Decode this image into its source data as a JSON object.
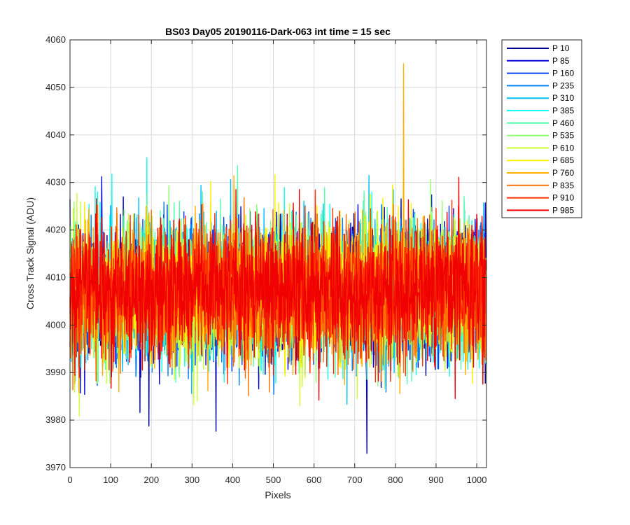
{
  "chart_data": {
    "type": "line",
    "title": "BS03 Day05 20190116-Dark-063 int time = 15 sec",
    "xlabel": "Pixels",
    "ylabel": "Cross Track Signal (ADU)",
    "xlim": [
      0,
      1024
    ],
    "ylim": [
      3970,
      4060
    ],
    "xticks": [
      0,
      100,
      200,
      300,
      400,
      500,
      600,
      700,
      800,
      900,
      1000
    ],
    "yticks": [
      3970,
      3980,
      3990,
      4000,
      4010,
      4020,
      4030,
      4040,
      4050,
      4060
    ],
    "grid": true,
    "legend_position": "outside-top-right",
    "n_points": 1024,
    "signal": {
      "mean": 4007,
      "noise_std": 7,
      "min": 3973,
      "max": 4055,
      "max_pixel": 820,
      "max_series": "P 760",
      "min_pixel": 730,
      "min_series": "P 85"
    },
    "series": [
      {
        "name": "P 10",
        "color": "#00008F"
      },
      {
        "name": "P 85",
        "color": "#0000D6"
      },
      {
        "name": "P 160",
        "color": "#0040FF"
      },
      {
        "name": "P 235",
        "color": "#0080FF"
      },
      {
        "name": "P 310",
        "color": "#00BFFF"
      },
      {
        "name": "P 385",
        "color": "#10FFEF"
      },
      {
        "name": "P 460",
        "color": "#50FFAF"
      },
      {
        "name": "P 535",
        "color": "#8FFF70"
      },
      {
        "name": "P 610",
        "color": "#CFFF30"
      },
      {
        "name": "P 685",
        "color": "#FFEF00"
      },
      {
        "name": "P 760",
        "color": "#FFB000"
      },
      {
        "name": "P 835",
        "color": "#FF7000"
      },
      {
        "name": "P 910",
        "color": "#FF3000"
      },
      {
        "name": "P 985",
        "color": "#F00000"
      }
    ]
  }
}
